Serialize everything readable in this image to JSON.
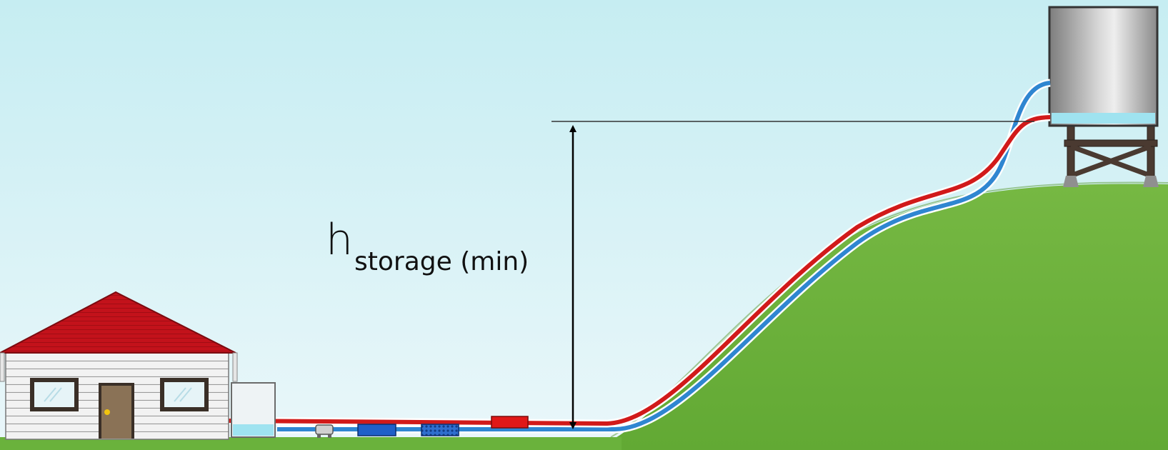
{
  "diagram": {
    "height_label": {
      "symbol": "h",
      "subscript": "storage (min)"
    },
    "colors": {
      "sky_top": "#c8eef2",
      "sky_bottom": "#e8f6f9",
      "grass": "#6ab23c",
      "pipe_red": "#d11a1a",
      "pipe_blue": "#2f86d1",
      "roof": "#c0121a",
      "tank_water": "#9fe3f0"
    },
    "components": [
      "house",
      "break-tank",
      "pump",
      "blue-filter",
      "mesh-filter",
      "red-heater",
      "elevated-storage-tank",
      "hill"
    ]
  }
}
